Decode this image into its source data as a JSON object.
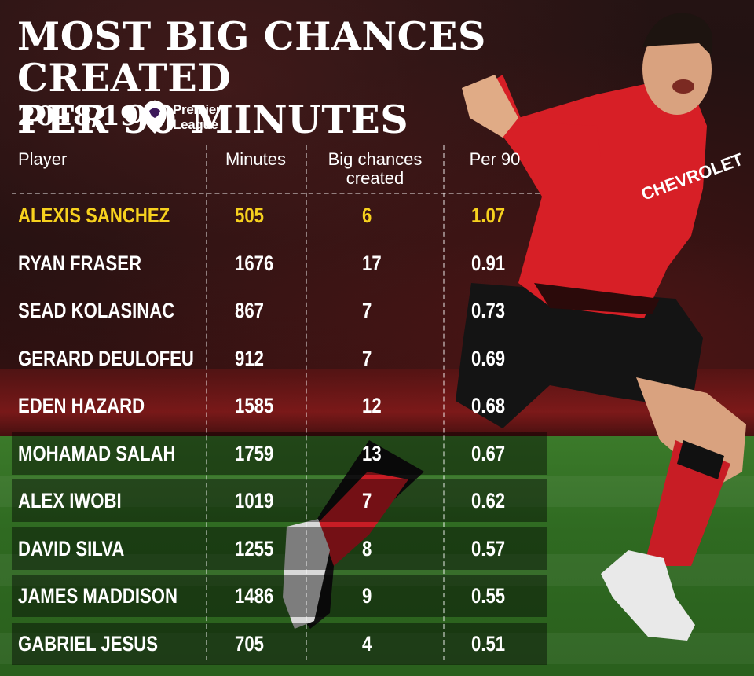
{
  "header": {
    "title_line1": "MOST BIG CHANCES CREATED",
    "title_line2": "PER 90 MINUTES",
    "season": "2018/19",
    "league_line1": "Premier",
    "league_line2": "League"
  },
  "colors": {
    "highlight": "#f7d11e",
    "text": "#ffffff"
  },
  "chart_data": {
    "type": "table",
    "columns": [
      "Player",
      "Minutes",
      "Big chances created",
      "Per 90"
    ],
    "rows": [
      {
        "player": "ALEXIS SANCHEZ",
        "minutes": "505",
        "big_chances": "6",
        "per90": "1.07",
        "highlight": true
      },
      {
        "player": "RYAN FRASER",
        "minutes": "1676",
        "big_chances": "17",
        "per90": "0.91"
      },
      {
        "player": "SEAD KOLASINAC",
        "minutes": "867",
        "big_chances": "7",
        "per90": "0.73"
      },
      {
        "player": "GERARD DEULOFEU",
        "minutes": "912",
        "big_chances": "7",
        "per90": "0.69"
      },
      {
        "player": "EDEN HAZARD",
        "minutes": "1585",
        "big_chances": "12",
        "per90": "0.68"
      },
      {
        "player": "MOHAMAD SALAH",
        "minutes": "1759",
        "big_chances": "13",
        "per90": "0.67"
      },
      {
        "player": "ALEX IWOBI",
        "minutes": "1019",
        "big_chances": "7",
        "per90": "0.62"
      },
      {
        "player": "DAVID SILVA",
        "minutes": "1255",
        "big_chances": "8",
        "per90": "0.57"
      },
      {
        "player": "JAMES MADDISON",
        "minutes": "1486",
        "big_chances": "9",
        "per90": "0.55"
      },
      {
        "player": "GABRIEL JESUS",
        "minutes": "705",
        "big_chances": "4",
        "per90": "0.51"
      }
    ]
  }
}
